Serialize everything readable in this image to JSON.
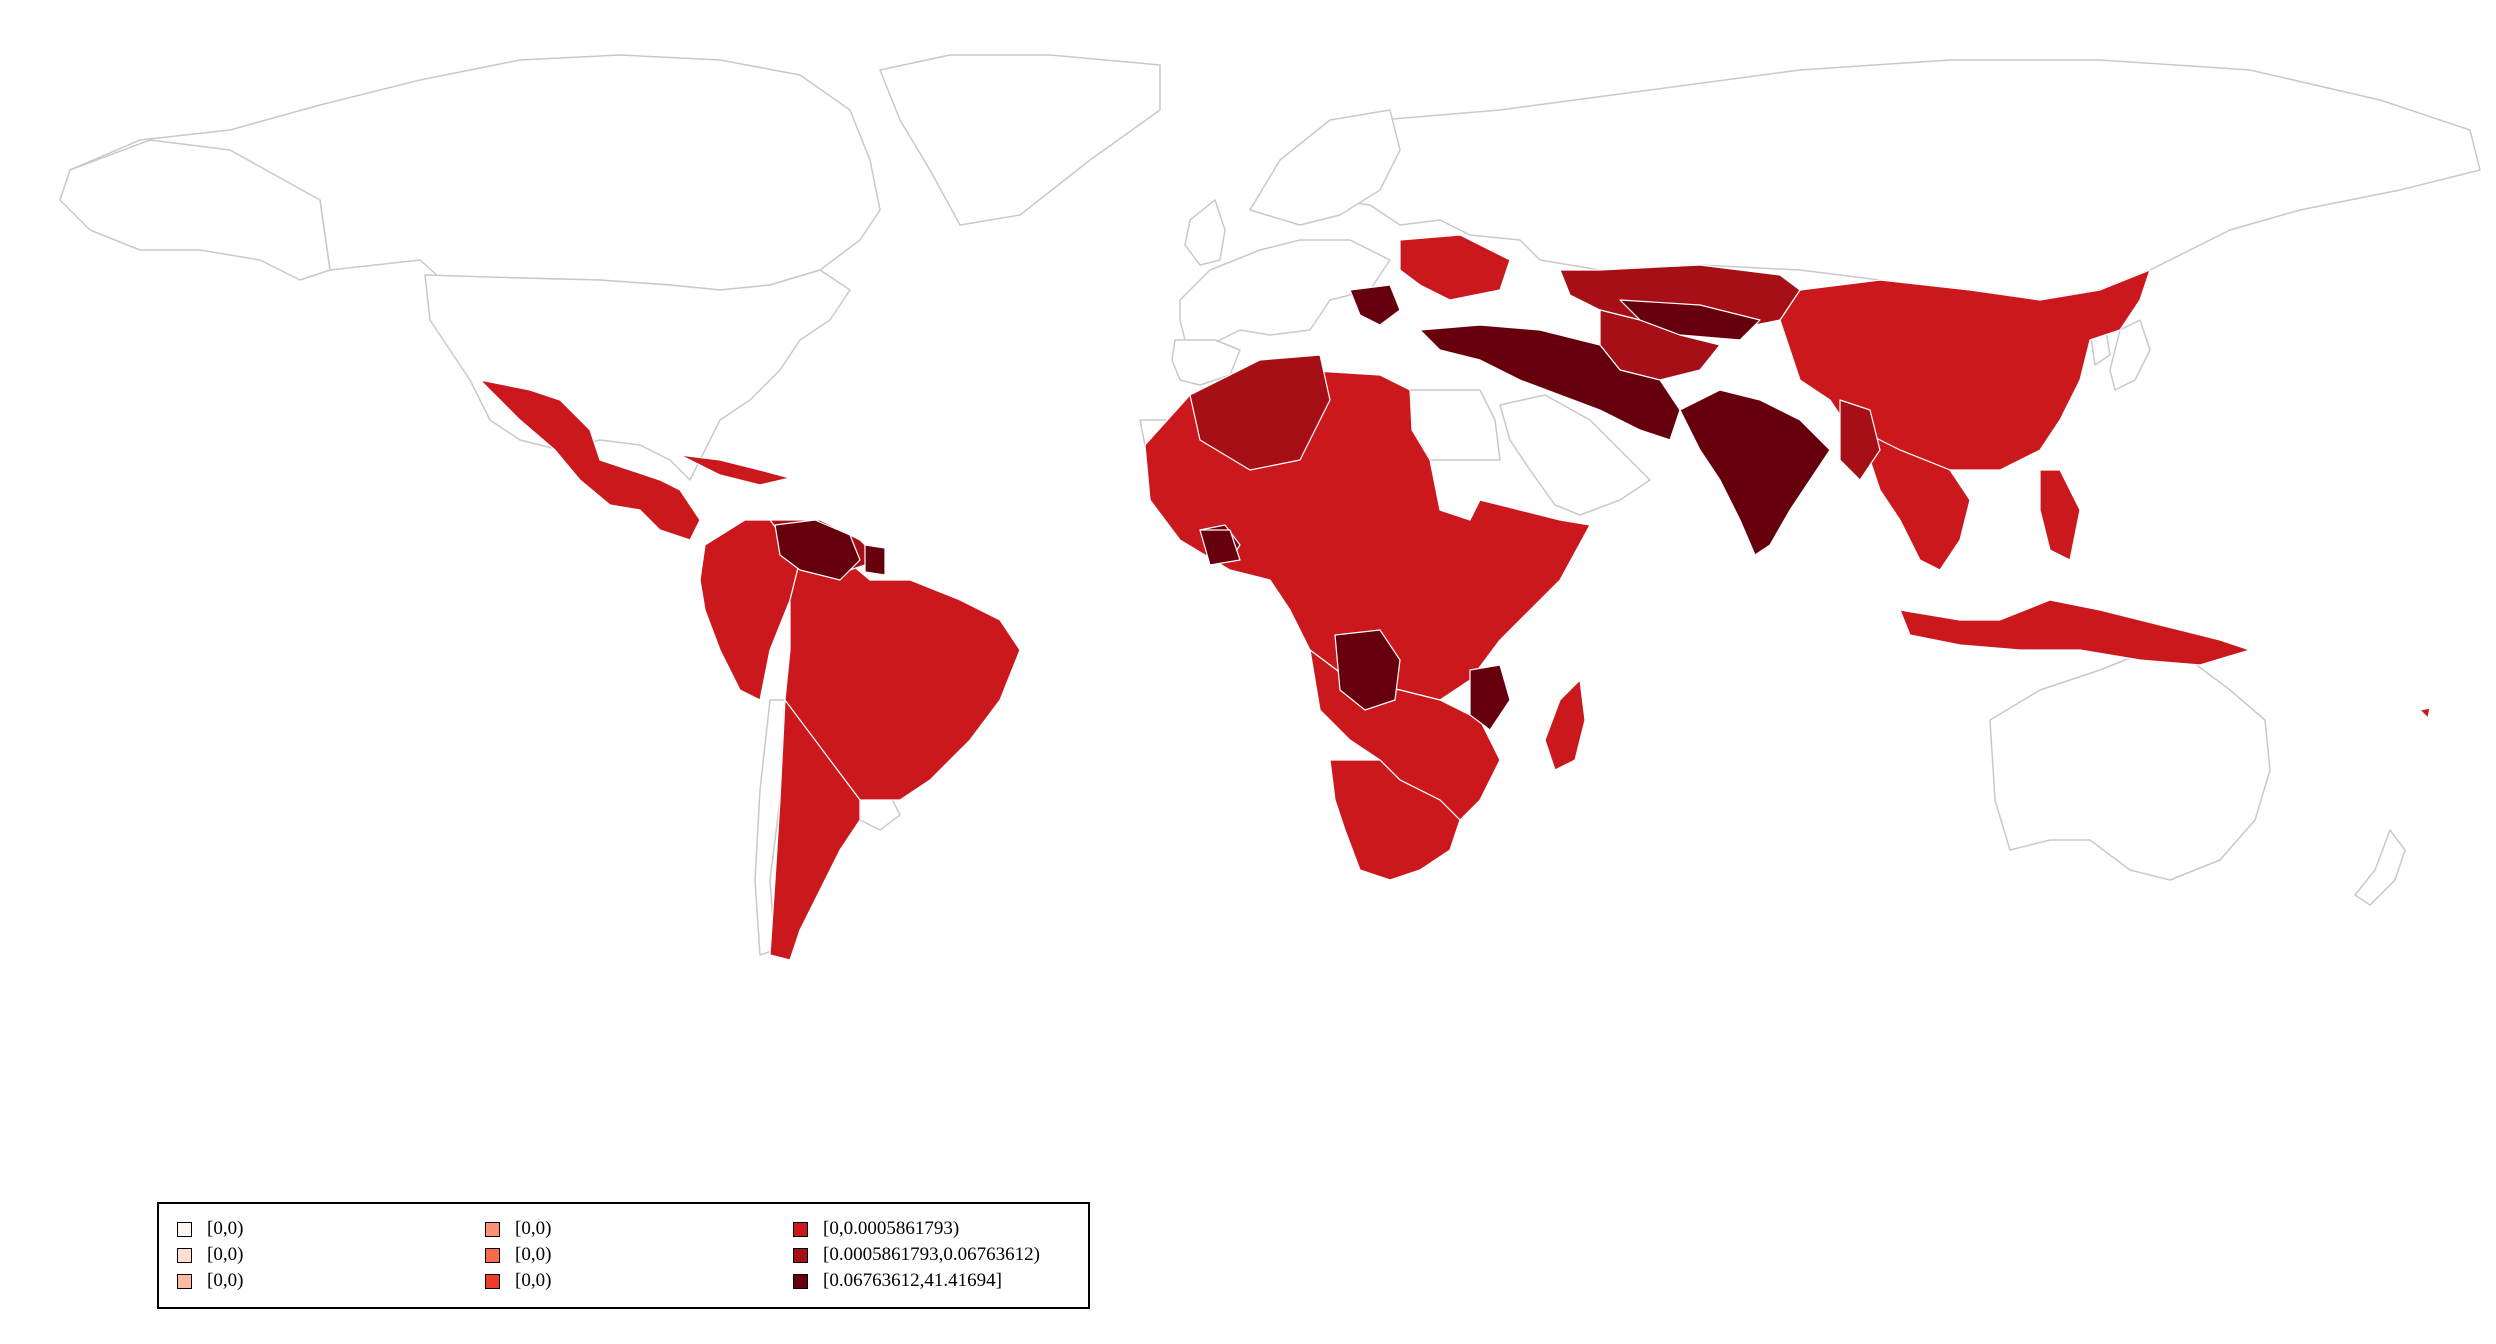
{
  "colors": {
    "no_data": "#ffffff",
    "border_no_data": "#c9c9c9",
    "class_4": "#cb181d",
    "class_5": "#a50f15",
    "class_6": "#67000d"
  },
  "legend": {
    "items": [
      {
        "label": "[0,0)",
        "color": "#fff5f0"
      },
      {
        "label": "[0,0)",
        "color": "#fee0d2"
      },
      {
        "label": "[0,0)",
        "color": "#fcbba1"
      },
      {
        "label": "[0,0)",
        "color": "#fc9272"
      },
      {
        "label": "[0,0)",
        "color": "#fb6a4a"
      },
      {
        "label": "[0,0)",
        "color": "#ef3b2c"
      },
      {
        "label": "[0,0.0005861793)",
        "color": "#cb181d"
      },
      {
        "label": "[0.0005861793,0.06763612)",
        "color": "#a50f15"
      },
      {
        "label": "[0.06763612,41.41694]",
        "color": "#67000d"
      }
    ]
  }
}
